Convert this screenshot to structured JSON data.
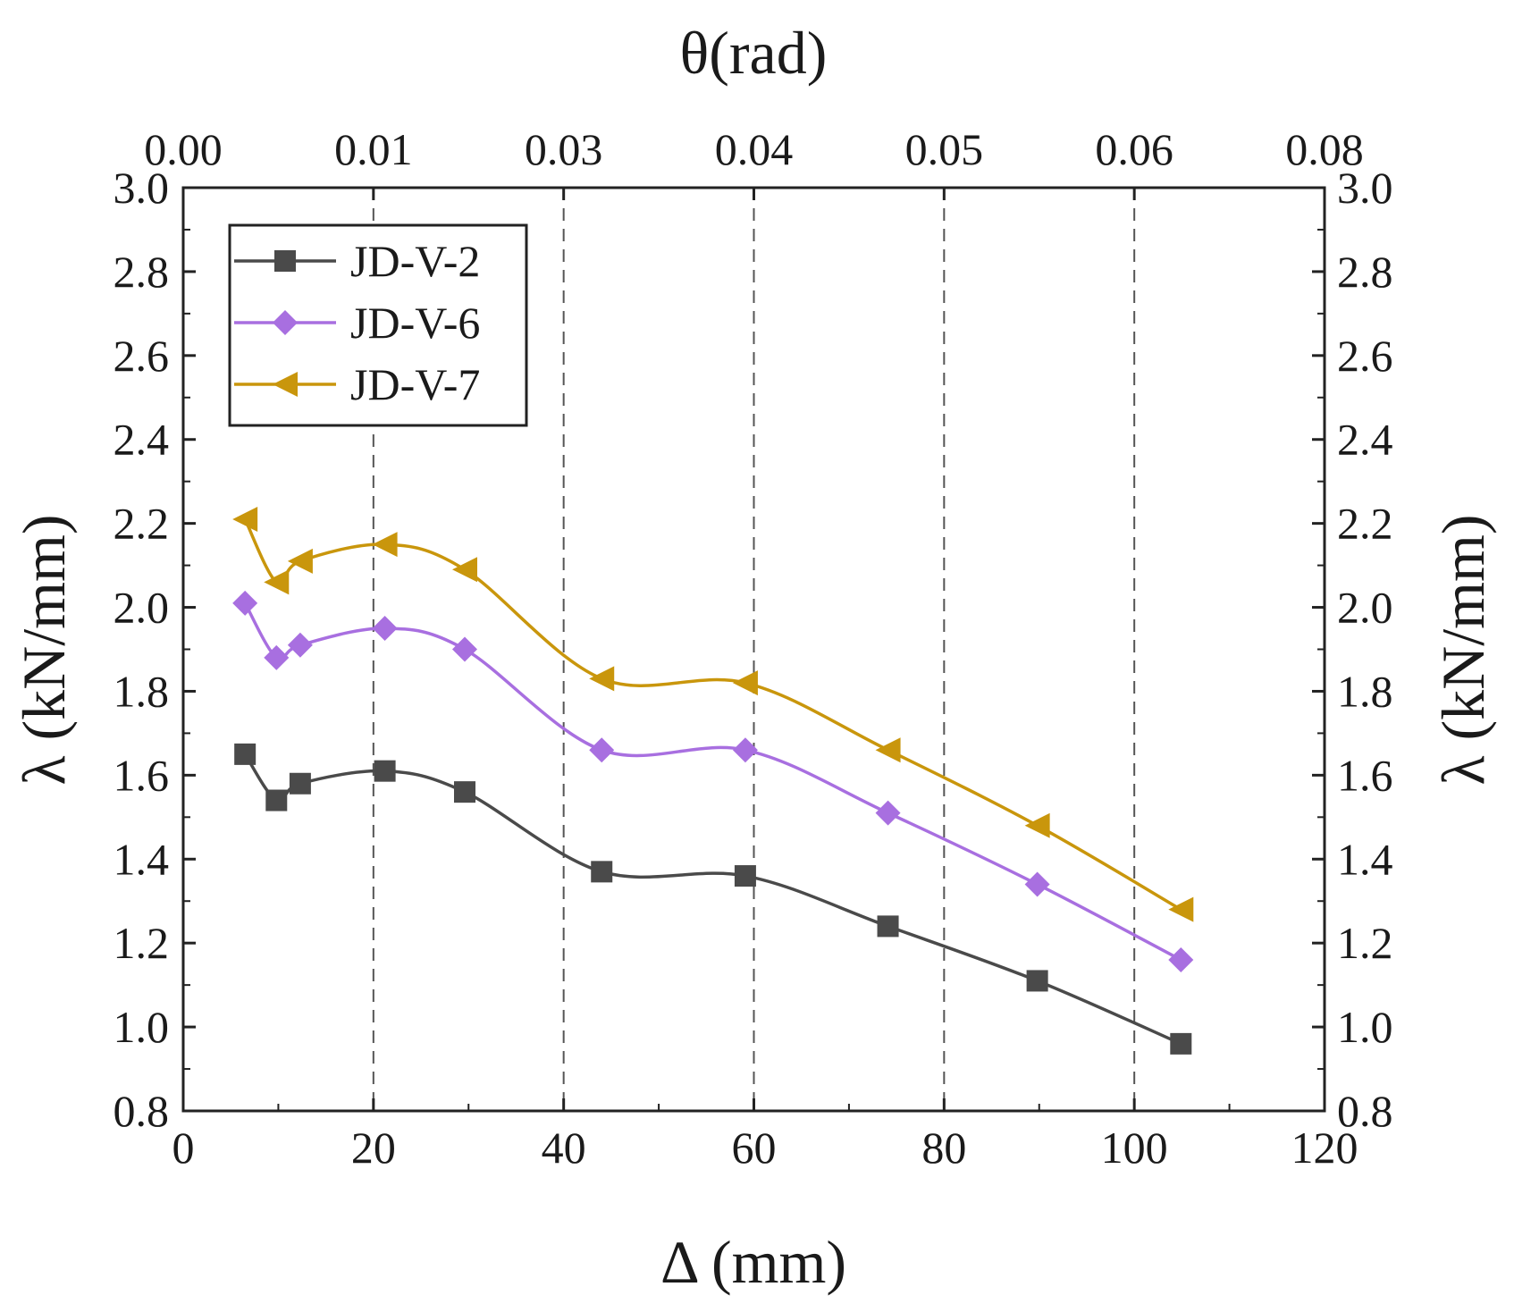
{
  "chart_data": {
    "type": "line",
    "title": "",
    "xlabel": "Δ (mm)",
    "ylabel": "λ (kN/mm)",
    "ylabel_right": "λ (kN/mm)",
    "x2label": "θ(rad)",
    "xlim": [
      0,
      120
    ],
    "ylim": [
      0.8,
      3.0
    ],
    "xticks": [
      0,
      20,
      40,
      60,
      80,
      100,
      120
    ],
    "xtick_labels": [
      "0",
      "20",
      "40",
      "60",
      "80",
      "100",
      "120"
    ],
    "yticks": [
      0.8,
      1.0,
      1.2,
      1.4,
      1.6,
      1.8,
      2.0,
      2.2,
      2.4,
      2.6,
      2.8,
      3.0
    ],
    "ytick_labels": [
      "0.8",
      "1.0",
      "1.2",
      "1.4",
      "1.6",
      "1.8",
      "2.0",
      "2.2",
      "2.4",
      "2.6",
      "2.8",
      "3.0"
    ],
    "x2ticks": [
      0,
      20,
      40,
      60,
      80,
      100,
      120
    ],
    "x2tick_labels": [
      "0.00",
      "0.01",
      "0.03",
      "0.04",
      "0.05",
      "0.06",
      "0.08"
    ],
    "vgrid_dashed": [
      20,
      40,
      60,
      80,
      100
    ],
    "legend_position": "top-left",
    "series": [
      {
        "name": "JD-V-2",
        "marker": "square",
        "color": "#4a4a4a",
        "x": [
          6.5,
          9.8,
          12.3,
          21.2,
          29.6,
          44.0,
          59.1,
          74.1,
          89.8,
          104.9
        ],
        "y": [
          1.65,
          1.54,
          1.58,
          1.61,
          1.56,
          1.37,
          1.36,
          1.24,
          1.11,
          0.96
        ]
      },
      {
        "name": "JD-V-6",
        "marker": "diamond",
        "color": "#a86fe0",
        "x": [
          6.5,
          9.8,
          12.3,
          21.2,
          29.6,
          44.0,
          59.1,
          74.1,
          89.8,
          104.9
        ],
        "y": [
          2.01,
          1.88,
          1.91,
          1.95,
          1.9,
          1.66,
          1.66,
          1.51,
          1.34,
          1.16
        ]
      },
      {
        "name": "JD-V-7",
        "marker": "triangle-left",
        "color": "#c9960c",
        "x": [
          6.5,
          9.8,
          12.3,
          21.2,
          29.6,
          44.0,
          59.1,
          74.1,
          89.8,
          104.9
        ],
        "y": [
          2.21,
          2.06,
          2.11,
          2.15,
          2.09,
          1.83,
          1.82,
          1.66,
          1.48,
          1.28
        ]
      }
    ]
  }
}
